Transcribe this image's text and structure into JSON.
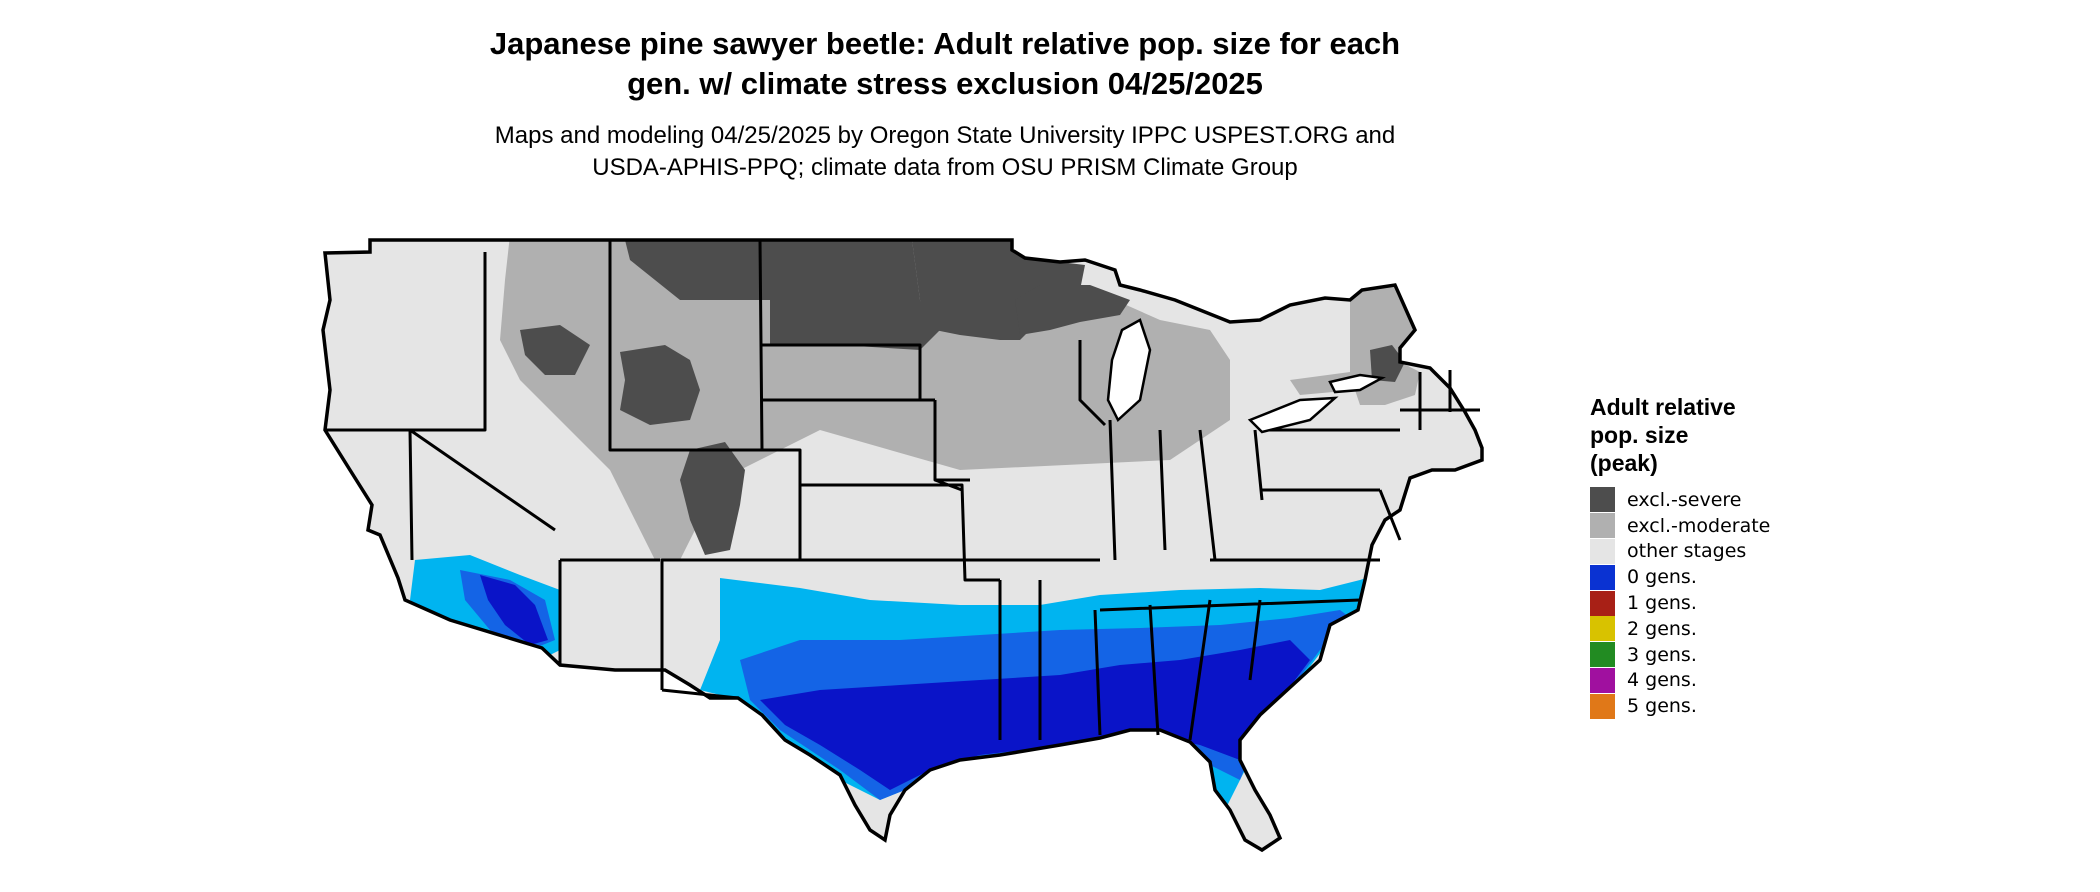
{
  "title": {
    "line1": "Japanese pine sawyer beetle: Adult relative pop. size for each",
    "line2": "gen. w/ climate stress exclusion 04/25/2025"
  },
  "subtitle": {
    "line1": "Maps and modeling 04/25/2025 by Oregon State University IPPC USPEST.ORG and",
    "line2": "USDA-APHIS-PPQ; climate data from OSU PRISM Climate Group"
  },
  "legend": {
    "title_lines": [
      "Adult relative",
      "pop. size",
      "(peak)"
    ],
    "items": [
      {
        "label": "excl.-severe",
        "color": "#4d4d4d"
      },
      {
        "label": "excl.-moderate",
        "color": "#b0b0b0"
      },
      {
        "label": "other stages",
        "color": "#e5e5e5"
      },
      {
        "label": "0 gens.",
        "color": "#0a32d2"
      },
      {
        "label": "1 gens.",
        "color": "#a82016"
      },
      {
        "label": "2 gens.",
        "color": "#d8c200"
      },
      {
        "label": "3 gens.",
        "color": "#228b22"
      },
      {
        "label": "4 gens.",
        "color": "#a0109f"
      },
      {
        "label": "5 gens.",
        "color": "#e07818"
      }
    ]
  },
  "map_colors": {
    "other_stages": "#e5e5e5",
    "excl_moderate": "#b0b0b0",
    "excl_severe": "#4d4d4d",
    "zero_gens_light": "#00b4f0",
    "zero_gens_mid": "#1464e6",
    "zero_gens_dark": "#0a14c8",
    "borders": "#000000"
  }
}
